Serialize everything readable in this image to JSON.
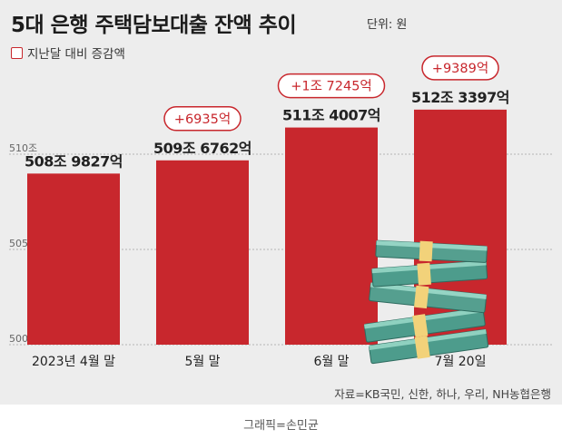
{
  "header": {
    "title": "5대 은행 주택담보대출 잔액 추이",
    "unit": "단위: 원"
  },
  "legend": {
    "label": "지난달 대비 증감액"
  },
  "source": "자료=KB국민, 신한, 하나, 우리, NH농협은행",
  "credit": "그래픽=손민균",
  "colors": {
    "bar": "#c8272d",
    "background": "#ededed",
    "change_border": "#c8272d",
    "change_text": "#c8272d"
  },
  "chart_data": {
    "type": "bar",
    "title": "5대 은행 주택담보대출 잔액 추이",
    "unit": "단위: 원",
    "categories": [
      "2023년 4월 말",
      "5월 말",
      "6월 말",
      "7월 20일"
    ],
    "values": [
      508.9827,
      509.6762,
      511.4007,
      512.3397
    ],
    "value_labels": [
      "508조 9827억",
      "509조 6762억",
      "511조 4007억",
      "512조 3397억"
    ],
    "changes": [
      "",
      "+6935억",
      "+1조 7245억",
      "+9389억"
    ],
    "y_ticks": [
      500,
      505,
      510
    ],
    "y_tick_labels": [
      "500조",
      "505조",
      "510조"
    ],
    "ylim": [
      500,
      514.8
    ],
    "grid": true,
    "legend": "top-left"
  }
}
